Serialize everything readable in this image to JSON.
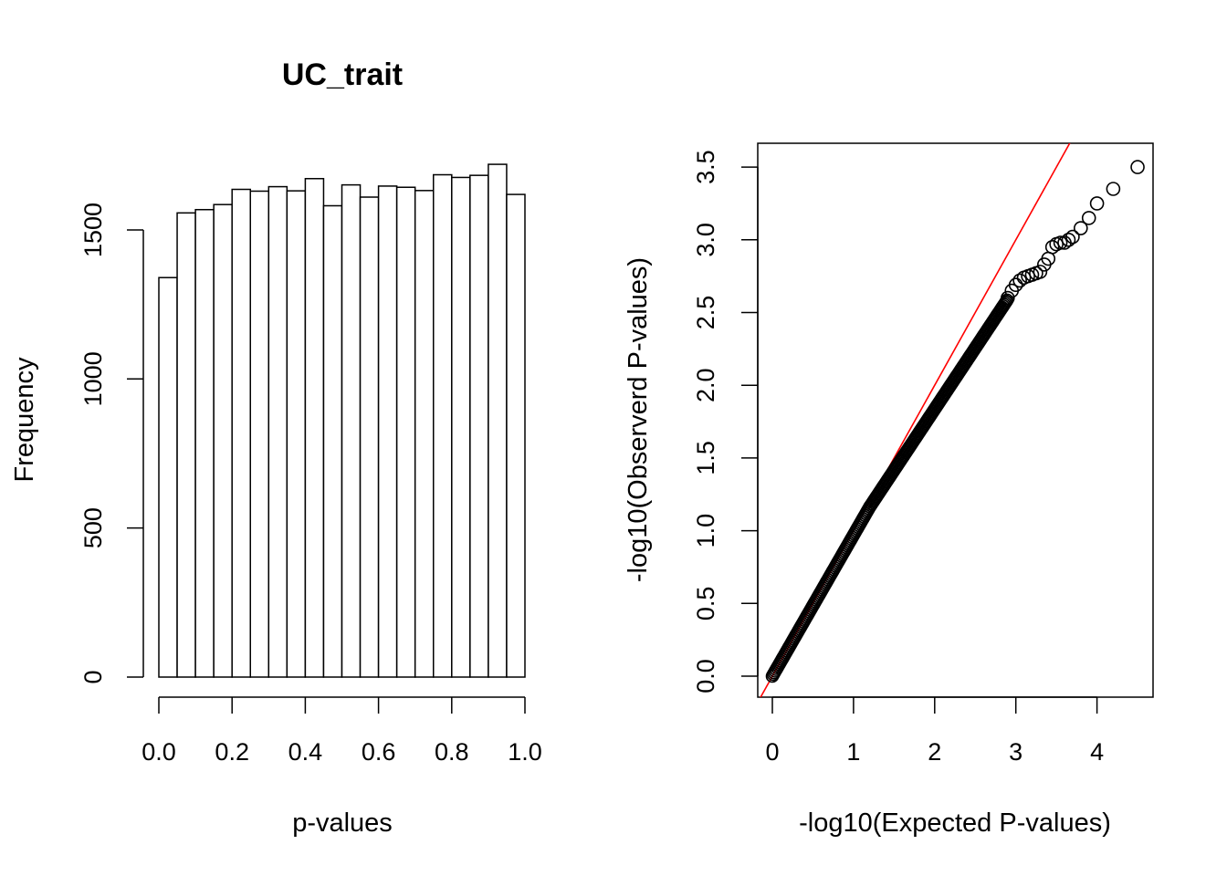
{
  "chart_data": [
    {
      "type": "bar",
      "title": "UC_trait",
      "xlabel": "p-values",
      "ylabel": "Frequency",
      "bin_edges": [
        0.0,
        0.05,
        0.1,
        0.15,
        0.2,
        0.25,
        0.3,
        0.35,
        0.4,
        0.45,
        0.5,
        0.55,
        0.6,
        0.65,
        0.7,
        0.75,
        0.8,
        0.85,
        0.9,
        0.95,
        1.0
      ],
      "values": [
        1340,
        1557,
        1568,
        1585,
        1636,
        1630,
        1645,
        1631,
        1672,
        1581,
        1651,
        1610,
        1647,
        1643,
        1632,
        1685,
        1676,
        1683,
        1720,
        1619
      ],
      "xlim": [
        0,
        1
      ],
      "ylim": [
        0,
        1700
      ],
      "x_ticks": [
        "0.0",
        "0.2",
        "0.4",
        "0.6",
        "0.8",
        "1.0"
      ],
      "y_ticks": [
        "0",
        "500",
        "1000",
        "1500"
      ],
      "grid": false
    },
    {
      "type": "scatter",
      "xlabel": "-log10(Expected P-values)",
      "ylabel": "-log10(Observerd P-values)",
      "xlim": [
        -0.18,
        4.68
      ],
      "ylim": [
        -0.13,
        3.67
      ],
      "x_ticks": [
        "0",
        "1",
        "2",
        "3",
        "4"
      ],
      "y_ticks": [
        "0.0",
        "0.5",
        "1.0",
        "1.5",
        "2.0",
        "2.5",
        "3.0",
        "3.5"
      ],
      "reference_line": {
        "slope": 1,
        "intercept": 0,
        "color": "#ff0000"
      },
      "grid": false,
      "tail_points": {
        "x": [
          2.9,
          2.95,
          3.0,
          3.05,
          3.1,
          3.15,
          3.2,
          3.25,
          3.3,
          3.35,
          3.4,
          3.45,
          3.5,
          3.55,
          3.6,
          3.65,
          3.7,
          3.8,
          3.9,
          4.0,
          4.2,
          4.5
        ],
        "y": [
          2.6,
          2.65,
          2.69,
          2.72,
          2.74,
          2.75,
          2.76,
          2.77,
          2.78,
          2.83,
          2.87,
          2.95,
          2.97,
          2.98,
          2.98,
          3.0,
          3.02,
          3.08,
          3.15,
          3.25,
          3.35,
          3.5
        ]
      }
    }
  ]
}
